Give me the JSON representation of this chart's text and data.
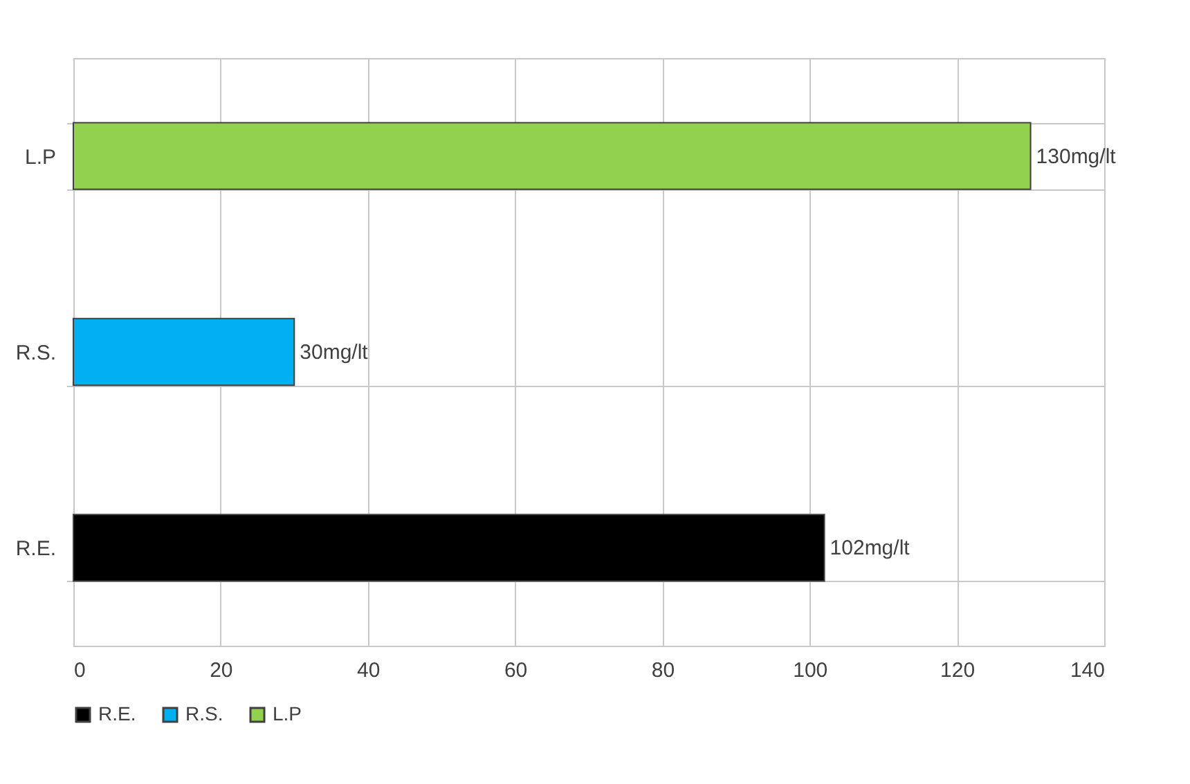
{
  "chart_data": {
    "type": "bar",
    "orientation": "horizontal",
    "categories": [
      "L.P",
      "R.S.",
      "R.E."
    ],
    "series": [
      {
        "name": "R.E.",
        "color": "#000000",
        "values": [
          null,
          null,
          102
        ],
        "value_labels": [
          null,
          null,
          "102mg/lt"
        ]
      },
      {
        "name": "R.S.",
        "color": "#00b0f0",
        "values": [
          null,
          30,
          null
        ],
        "value_labels": [
          null,
          "30mg/lt",
          null
        ]
      },
      {
        "name": "L.P",
        "color": "#92d050",
        "values": [
          130,
          null,
          null
        ],
        "value_labels": [
          "130mg/lt",
          null,
          null
        ]
      }
    ],
    "xlim": [
      0,
      140
    ],
    "xticks": [
      0,
      20,
      40,
      60,
      80,
      100,
      120,
      140
    ],
    "grid": true,
    "legend": "bottom"
  }
}
